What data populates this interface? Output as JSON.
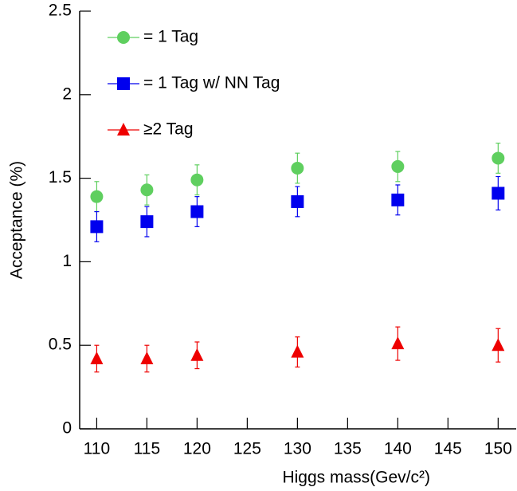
{
  "chart_data": {
    "type": "scatter",
    "x_label": "Higgs mass(Gev/c²)",
    "y_label": "Acceptance (%)",
    "x": [
      110,
      115,
      120,
      130,
      140,
      150
    ],
    "series": [
      {
        "name": "= 1 Tag",
        "color": "#5fcf5f",
        "marker": "circle",
        "values": [
          1.39,
          1.43,
          1.49,
          1.56,
          1.57,
          1.62
        ],
        "errors": [
          0.09,
          0.09,
          0.09,
          0.09,
          0.09,
          0.09
        ]
      },
      {
        "name": "= 1 Tag w/ NN Tag",
        "color": "#0000ee",
        "marker": "square",
        "values": [
          1.21,
          1.24,
          1.3,
          1.36,
          1.37,
          1.41
        ],
        "errors": [
          0.09,
          0.09,
          0.09,
          0.09,
          0.09,
          0.1
        ]
      },
      {
        "name": "≥2 Tag",
        "color": "#ee0000",
        "marker": "triangle",
        "values": [
          0.42,
          0.42,
          0.44,
          0.46,
          0.51,
          0.5
        ],
        "errors": [
          0.08,
          0.08,
          0.08,
          0.09,
          0.1,
          0.1
        ]
      }
    ],
    "xlim": [
      108.3,
      151.8
    ],
    "xticks": [
      110,
      115,
      120,
      125,
      130,
      135,
      140,
      145,
      150
    ],
    "ylim": [
      0,
      2.5
    ],
    "yticks": [
      0,
      0.5,
      1,
      1.5,
      2,
      2.5
    ],
    "legend": "upper left"
  }
}
